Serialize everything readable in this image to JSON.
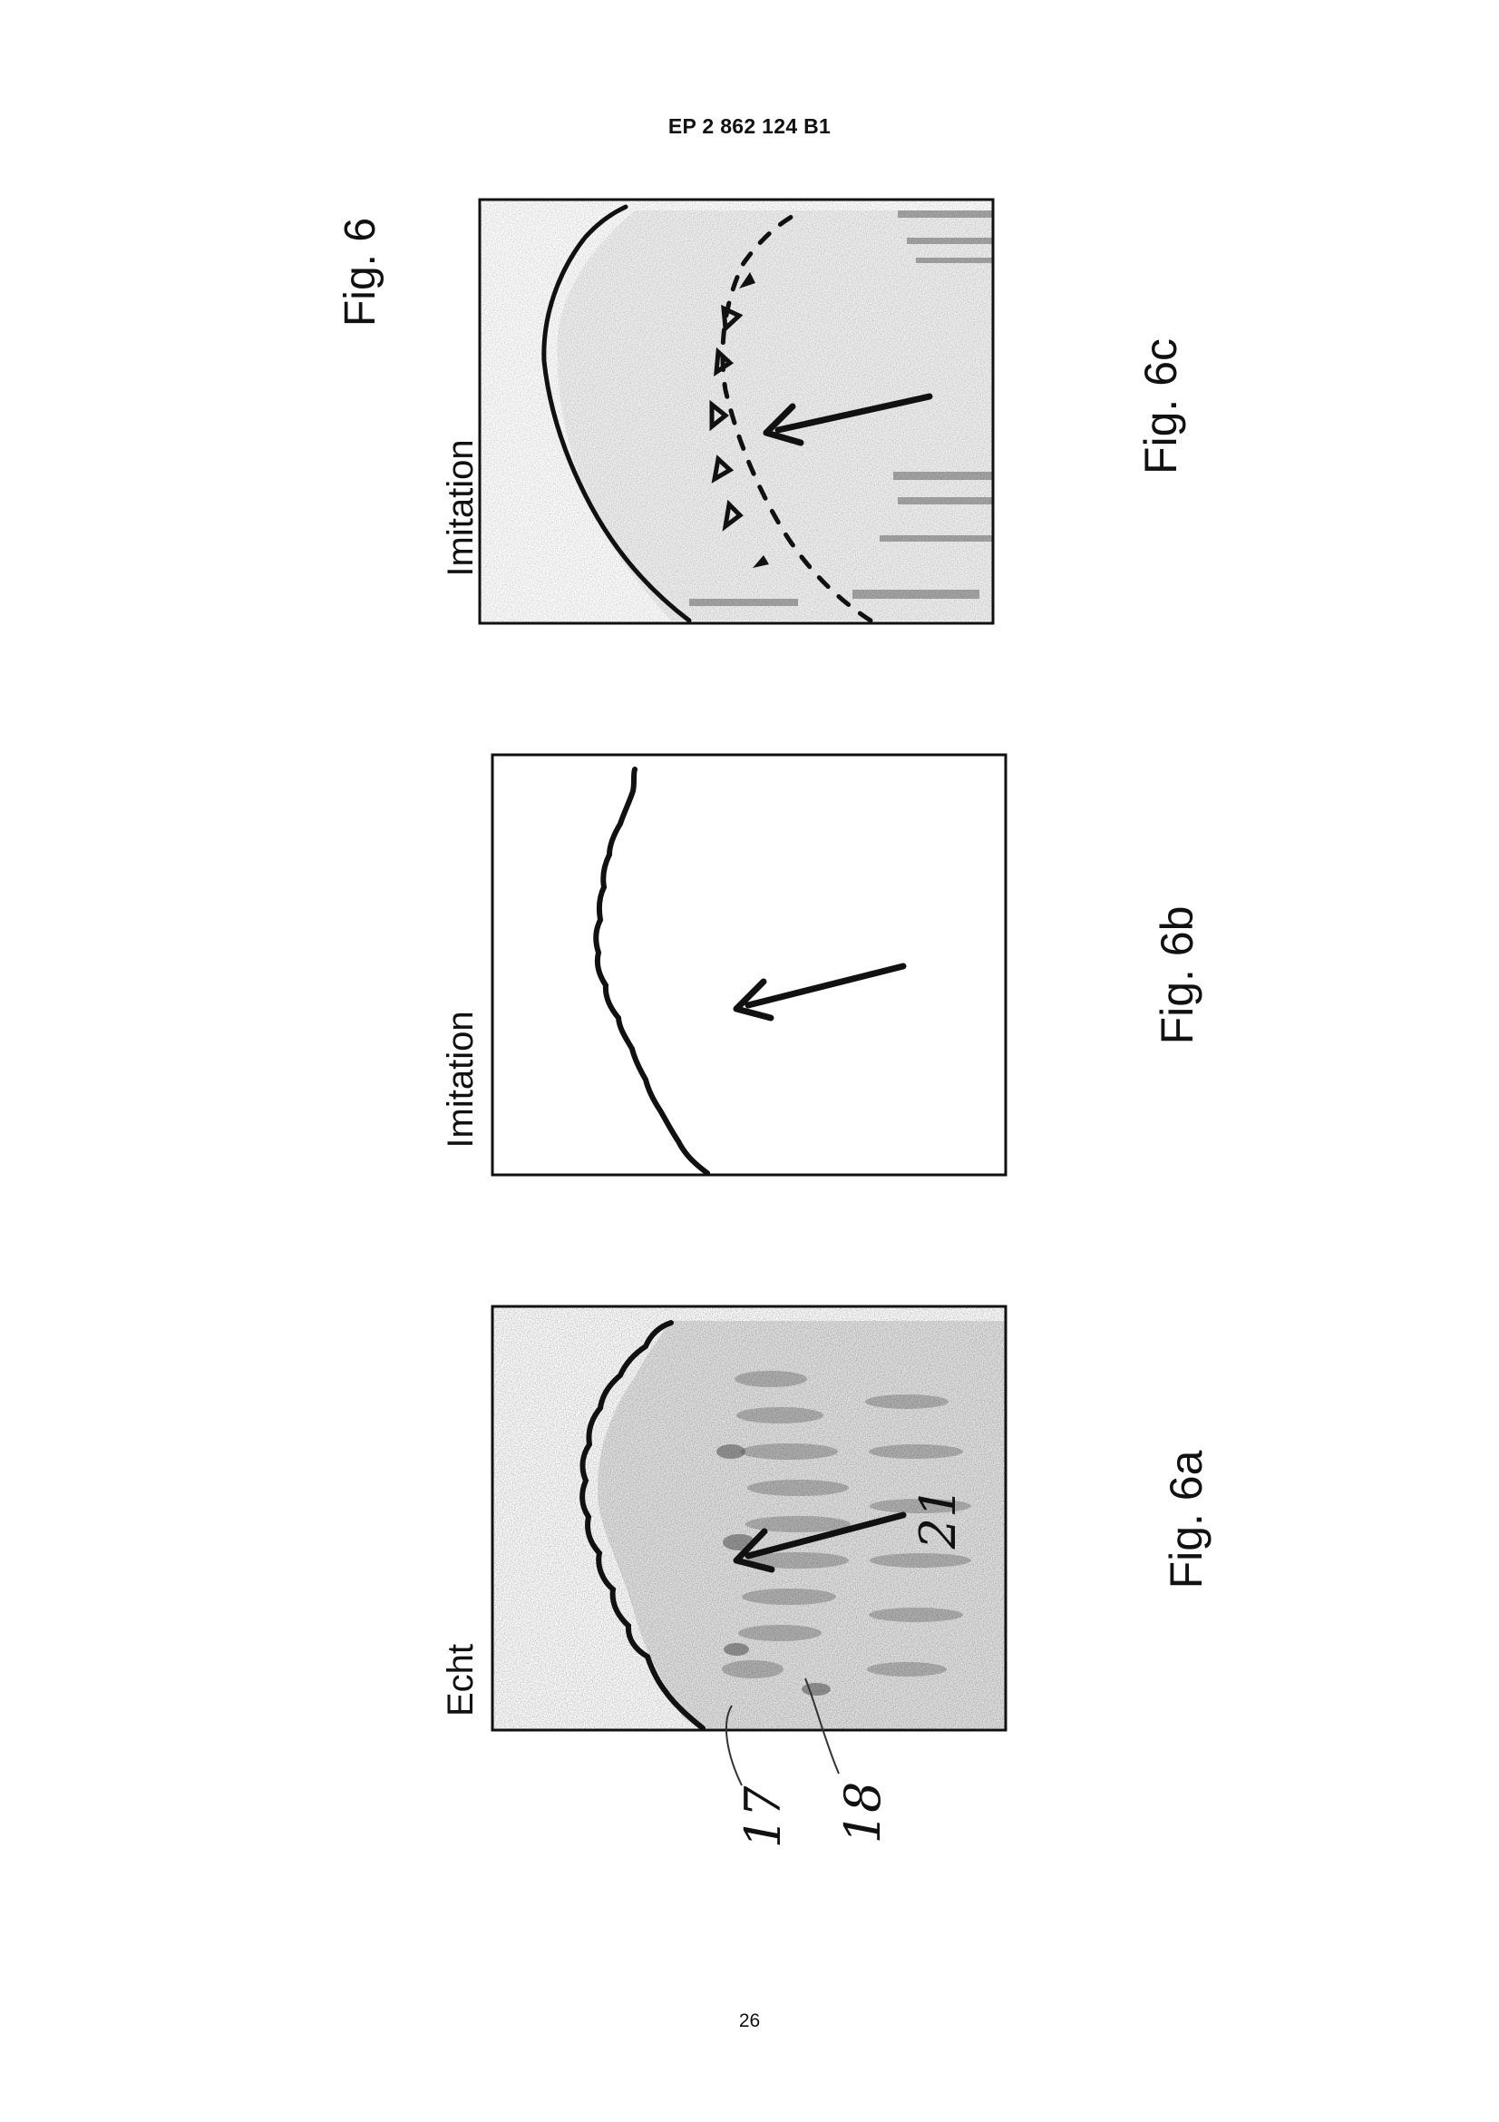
{
  "page": {
    "header": "EP 2 862 124 B1",
    "page_number": "26",
    "figure_title": "Fig. 6"
  },
  "panels": [
    {
      "id": "6a",
      "title": "Echt",
      "caption": "Fig. 6a",
      "reference_numerals": [
        "17",
        "18",
        "21"
      ]
    },
    {
      "id": "6b",
      "title": "Imitation",
      "caption": "Fig. 6b"
    },
    {
      "id": "6c",
      "title": "Imitation",
      "caption": "Fig. 6c"
    }
  ],
  "colors": {
    "ink": "#111111",
    "paper": "#ffffff",
    "shading": "#9a9a9a"
  }
}
